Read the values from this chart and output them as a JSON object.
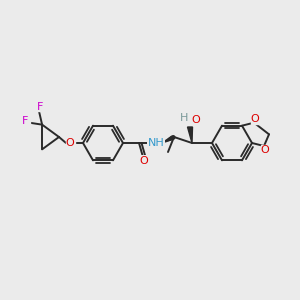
{
  "background_color": "#ebebeb",
  "bond_color": "#2a2a2a",
  "atom_colors": {
    "F": "#cc00cc",
    "O": "#dd0000",
    "N": "#3399cc",
    "H": "#7a9999",
    "C": "#2a2a2a"
  },
  "figsize": [
    3.0,
    3.0
  ],
  "dpi": 100
}
